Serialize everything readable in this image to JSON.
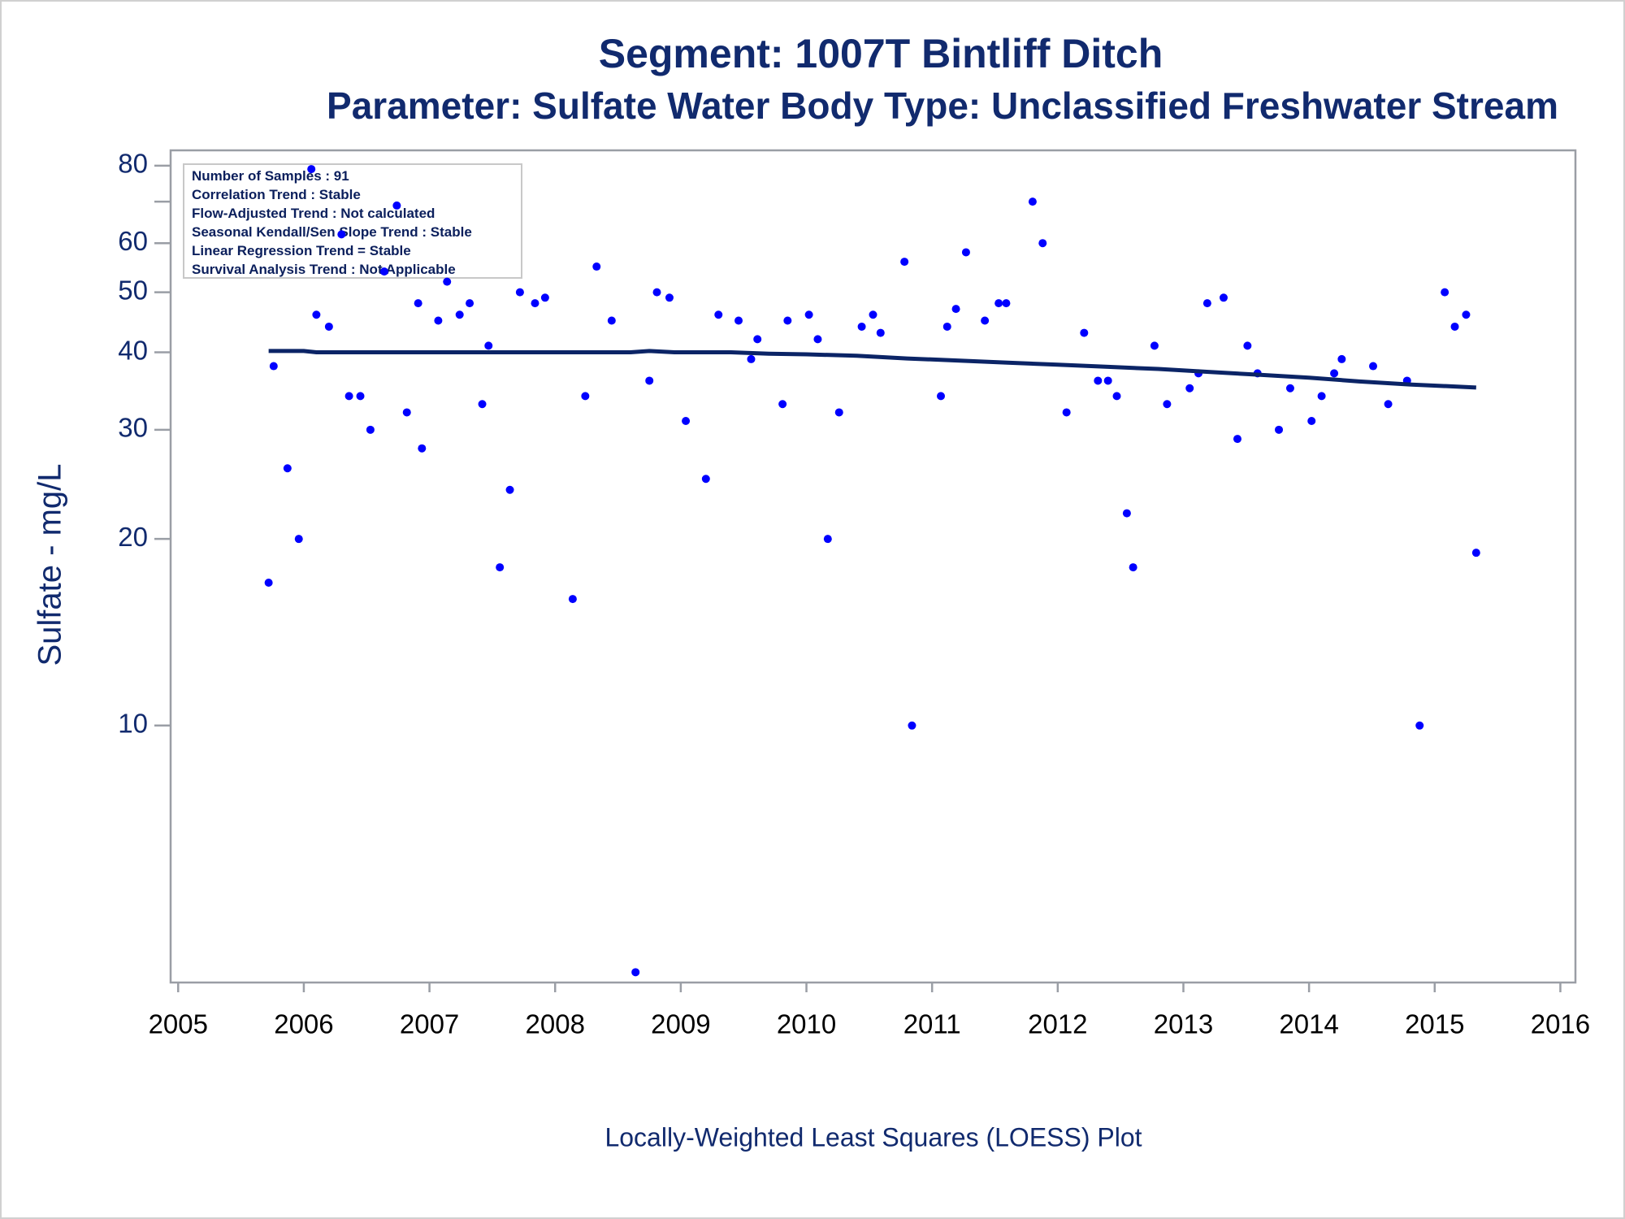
{
  "chart_data": {
    "type": "scatter",
    "title": "Segment: 1007T  Bintliff Ditch",
    "subtitle": "Parameter: Sulfate   Water Body Type: Unclassified Freshwater Stream",
    "ylabel": "Sulfate - mg/L",
    "footnote": "Locally-Weighted Least Squares (LOESS) Plot",
    "annotations": [
      "Number of Samples : 91",
      "Correlation Trend : Stable",
      "Flow-Adjusted Trend : Not calculated",
      "Seasonal Kendall/Sen Slope Trend : Stable",
      "Linear Regression Trend = Stable",
      "Survival Analysis Trend : Not Applicable"
    ],
    "y_log": true,
    "xlim": [
      2004.94,
      2016.12
    ],
    "xticks": [
      2005,
      2006,
      2007,
      2008,
      2009,
      2010,
      2011,
      2012,
      2013,
      2014,
      2015,
      2016
    ],
    "ylim": [
      3.85,
      84.7
    ],
    "yticks": [
      10,
      20,
      30,
      40,
      50,
      60,
      80
    ],
    "y_minor_ticks": [
      70
    ],
    "series": [
      {
        "kind": "marker",
        "color": "#0000ff",
        "x": [
          2005.72,
          2005.76,
          2005.87,
          2005.96,
          2006.06,
          2006.1,
          2006.2,
          2006.36,
          2006.45,
          2006.3,
          2006.53,
          2006.64,
          2006.74,
          2006.82,
          2006.91,
          2006.94,
          2007.07,
          2007.14,
          2007.24,
          2007.32,
          2007.42,
          2007.47,
          2007.56,
          2007.64,
          2007.72,
          2007.84,
          2007.92,
          2008.14,
          2008.24,
          2008.33,
          2008.45,
          2008.64,
          2008.75,
          2008.81,
          2008.91,
          2009.04,
          2009.2,
          2009.3,
          2009.46,
          2009.56,
          2009.61,
          2009.81,
          2009.85,
          2010.02,
          2010.09,
          2010.17,
          2010.26,
          2010.44,
          2010.53,
          2010.59,
          2010.78,
          2010.84,
          2011.07,
          2011.12,
          2011.19,
          2011.27,
          2011.42,
          2011.53,
          2011.59,
          2011.8,
          2011.88,
          2012.07,
          2012.21,
          2012.32,
          2012.4,
          2012.47,
          2012.55,
          2012.6,
          2012.77,
          2012.87,
          2013.05,
          2013.12,
          2013.19,
          2013.32,
          2013.43,
          2013.51,
          2013.59,
          2013.76,
          2013.85,
          2014.02,
          2014.1,
          2014.2,
          2014.26,
          2014.51,
          2014.63,
          2014.78,
          2014.88,
          2015.08,
          2015.16,
          2015.25,
          2015.33
        ],
        "values": [
          17,
          38,
          26,
          20,
          79,
          46,
          44,
          34,
          34,
          62,
          30,
          54,
          69,
          32,
          48,
          28,
          45,
          52,
          46,
          48,
          33,
          41,
          18,
          24,
          50,
          48,
          49,
          16,
          34,
          55,
          45,
          4,
          36,
          50,
          49,
          31,
          25,
          46,
          45,
          39,
          42,
          33,
          45,
          46,
          42,
          20,
          32,
          44,
          46,
          43,
          56,
          10,
          34,
          44,
          47,
          58,
          45,
          48,
          48,
          70,
          60,
          32,
          43,
          36,
          36,
          34,
          22,
          18,
          41,
          33,
          35,
          37,
          48,
          49,
          29,
          41,
          37,
          30,
          35,
          31,
          34,
          37,
          39,
          38,
          33,
          36,
          10,
          50,
          44,
          46,
          19
        ]
      },
      {
        "kind": "line",
        "color": "#0b2466",
        "x": [
          2005.72,
          2006.0,
          2006.1,
          2008.6,
          2008.75,
          2008.95,
          2009.4,
          2009.7,
          2010.0,
          2010.4,
          2010.8,
          2011.2,
          2011.6,
          2012.0,
          2012.4,
          2012.8,
          2013.2,
          2013.6,
          2014.0,
          2014.4,
          2014.8,
          2015.33
        ],
        "values": [
          40.2,
          40.2,
          40,
          40,
          40.2,
          40,
          40,
          39.8,
          39.7,
          39.5,
          39.1,
          38.8,
          38.5,
          38.2,
          37.9,
          37.6,
          37.2,
          36.8,
          36.4,
          35.9,
          35.5,
          35.1
        ]
      }
    ]
  }
}
